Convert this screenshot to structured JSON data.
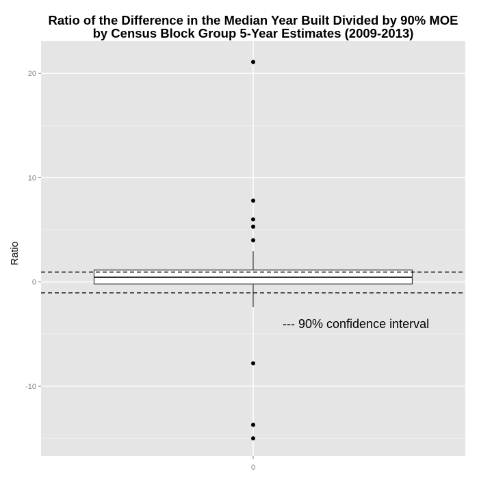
{
  "chart_data": {
    "type": "box",
    "title_lines": [
      "Ratio of the Difference in the Median Year Built Divided by 90% MOE",
      "by Census Block Group 5-Year Estimates (2009-2013)"
    ],
    "xlabel": "",
    "ylabel": "Ratio",
    "x_tick_labels": [
      "0"
    ],
    "y_ticks": [
      -10,
      0,
      10,
      20
    ],
    "ylim": [
      -16.7,
      23.1
    ],
    "grid": true,
    "background_color": "#e5e5e5",
    "grid_color": "#ffffff",
    "box": {
      "category": "0",
      "q1": -0.2,
      "median": 0.45,
      "q3": 1.15,
      "whisker_low": -2.4,
      "whisker_high": 2.95
    },
    "outliers": [
      21.1,
      7.8,
      6.0,
      5.3,
      4.0,
      -7.8,
      -13.7,
      -15.0
    ],
    "reference_lines": [
      {
        "y": 0.95,
        "style": "dashed"
      },
      {
        "y": -1.05,
        "style": "dashed"
      }
    ],
    "annotation": {
      "text": "--- 90% confidence interval",
      "x": 0.18,
      "y": -4.2
    }
  }
}
